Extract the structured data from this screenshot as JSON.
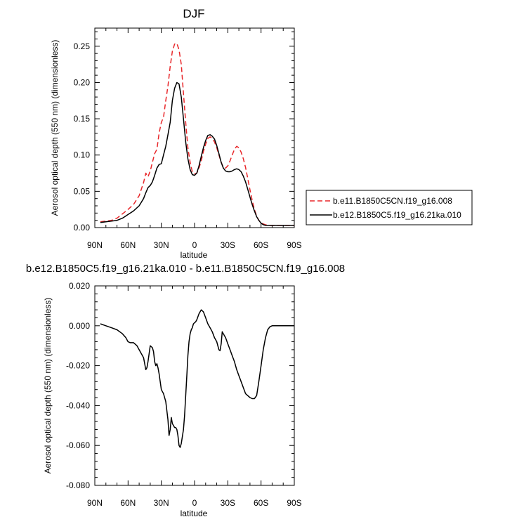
{
  "chart_data": [
    {
      "type": "line",
      "title": "DJF",
      "xlabel": "latitude",
      "ylabel": "Aerosol optical depth (550 nm) (dimensionless)",
      "xlim": [
        90,
        -90
      ],
      "ylim": [
        0.0,
        0.275
      ],
      "x_ticks": [
        90,
        60,
        30,
        0,
        -30,
        -60,
        -90
      ],
      "x_tick_labels": [
        "90N",
        "60N",
        "30N",
        "0",
        "30S",
        "60S",
        "90S"
      ],
      "y_ticks": [
        0.0,
        0.05,
        0.1,
        0.15,
        0.2,
        0.25
      ],
      "y_tick_labels": [
        "0.00",
        "0.05",
        "0.10",
        "0.15",
        "0.20",
        "0.25"
      ],
      "grid": false,
      "legend_position": "right",
      "series": [
        {
          "name": "b.e11.B1850C5CN.f19_g16.008",
          "color": "#e8272a",
          "dash": "dashed",
          "x": [
            85,
            80,
            75,
            70,
            65,
            60,
            55,
            50,
            46,
            44,
            42,
            40,
            38,
            36,
            34,
            32,
            30,
            28,
            26,
            24,
            22,
            20,
            18,
            16,
            14,
            12,
            10,
            8,
            6,
            4,
            2,
            0,
            -2,
            -4,
            -6,
            -8,
            -10,
            -12,
            -14,
            -16,
            -18,
            -20,
            -22,
            -24,
            -26,
            -28,
            -30,
            -32,
            -34,
            -36,
            -38,
            -40,
            -42,
            -44,
            -46,
            -48,
            -50,
            -52,
            -54,
            -56,
            -58,
            -60,
            -62,
            -64,
            -66,
            -70,
            -75,
            -80,
            -85,
            -90
          ],
          "y": [
            0.008,
            0.009,
            0.01,
            0.013,
            0.019,
            0.025,
            0.032,
            0.044,
            0.062,
            0.075,
            0.07,
            0.078,
            0.09,
            0.102,
            0.108,
            0.13,
            0.145,
            0.152,
            0.175,
            0.195,
            0.222,
            0.243,
            0.253,
            0.254,
            0.245,
            0.225,
            0.185,
            0.145,
            0.11,
            0.09,
            0.077,
            0.074,
            0.075,
            0.082,
            0.092,
            0.105,
            0.115,
            0.123,
            0.125,
            0.123,
            0.118,
            0.11,
            0.1,
            0.09,
            0.083,
            0.082,
            0.085,
            0.092,
            0.1,
            0.108,
            0.112,
            0.11,
            0.104,
            0.095,
            0.083,
            0.068,
            0.052,
            0.038,
            0.025,
            0.016,
            0.01,
            0.007,
            0.005,
            0.004,
            0.003,
            0.003,
            0.003,
            0.003,
            0.003,
            0.003
          ]
        },
        {
          "name": "b.e12.B1850C5.f19_g16.21ka.010",
          "color": "#000000",
          "dash": "solid",
          "x": [
            85,
            80,
            75,
            70,
            65,
            60,
            55,
            50,
            46,
            44,
            42,
            40,
            38,
            36,
            34,
            32,
            30,
            28,
            26,
            24,
            22,
            20,
            18,
            16,
            14,
            12,
            10,
            8,
            6,
            4,
            2,
            0,
            -2,
            -4,
            -6,
            -8,
            -10,
            -12,
            -14,
            -16,
            -18,
            -20,
            -22,
            -24,
            -26,
            -28,
            -30,
            -32,
            -34,
            -36,
            -38,
            -40,
            -42,
            -44,
            -46,
            -48,
            -50,
            -52,
            -54,
            -56,
            -58,
            -60,
            -62,
            -64,
            -66,
            -70,
            -75,
            -80,
            -85,
            -90
          ],
          "y": [
            0.007,
            0.008,
            0.009,
            0.01,
            0.013,
            0.018,
            0.023,
            0.03,
            0.04,
            0.048,
            0.055,
            0.058,
            0.063,
            0.072,
            0.082,
            0.087,
            0.088,
            0.1,
            0.112,
            0.128,
            0.145,
            0.175,
            0.192,
            0.2,
            0.198,
            0.18,
            0.15,
            0.118,
            0.095,
            0.08,
            0.073,
            0.072,
            0.075,
            0.085,
            0.098,
            0.11,
            0.12,
            0.127,
            0.128,
            0.126,
            0.122,
            0.113,
            0.102,
            0.09,
            0.082,
            0.078,
            0.077,
            0.077,
            0.078,
            0.08,
            0.081,
            0.08,
            0.077,
            0.071,
            0.063,
            0.053,
            0.042,
            0.032,
            0.023,
            0.015,
            0.01,
            0.006,
            0.004,
            0.003,
            0.003,
            0.003,
            0.003,
            0.003,
            0.003,
            0.003
          ]
        }
      ]
    },
    {
      "type": "line",
      "title": "b.e12.B1850C5.f19_g16.21ka.010 - b.e11.B1850C5CN.f19_g16.008",
      "xlabel": "latitude",
      "ylabel": "Aerosol optical depth (550 nm) (dimensionless)",
      "xlim": [
        90,
        -90
      ],
      "ylim": [
        -0.08,
        0.02
      ],
      "x_ticks": [
        90,
        60,
        30,
        0,
        -30,
        -60,
        -90
      ],
      "x_tick_labels": [
        "90N",
        "60N",
        "30N",
        "0",
        "30S",
        "60S",
        "90S"
      ],
      "y_ticks": [
        -0.08,
        -0.06,
        -0.04,
        -0.02,
        0.0,
        0.02
      ],
      "y_tick_labels": [
        "-0.080",
        "-0.060",
        "-0.040",
        "-0.020",
        "0.000",
        "0.020"
      ],
      "grid": false,
      "series": [
        {
          "color": "#000000",
          "x": [
            85,
            80,
            75,
            70,
            65,
            62,
            60,
            58,
            55,
            52,
            50,
            48,
            46,
            44,
            43,
            42,
            41,
            40,
            38,
            37,
            36,
            35,
            34,
            33,
            32,
            31,
            30,
            28,
            26,
            24,
            23,
            22,
            21,
            20,
            19,
            18,
            17,
            16,
            15,
            14,
            13,
            12,
            10,
            9,
            8,
            7,
            6,
            5,
            4,
            3,
            2,
            1,
            0,
            -1,
            -2,
            -4,
            -6,
            -8,
            -10,
            -12,
            -14,
            -16,
            -18,
            -20,
            -22,
            -23,
            -24,
            -25,
            -26,
            -28,
            -30,
            -32,
            -34,
            -36,
            -38,
            -40,
            -42,
            -44,
            -46,
            -48,
            -50,
            -52,
            -54,
            -56,
            -58,
            -60,
            -62,
            -64,
            -66,
            -68,
            -70,
            -75,
            -80,
            -85,
            -90
          ],
          "y": [
            0.001,
            0.0,
            -0.001,
            -0.002,
            -0.004,
            -0.006,
            -0.008,
            -0.0085,
            -0.0085,
            -0.01,
            -0.012,
            -0.014,
            -0.016,
            -0.022,
            -0.021,
            -0.018,
            -0.014,
            -0.01,
            -0.011,
            -0.013,
            -0.018,
            -0.02,
            -0.019,
            -0.021,
            -0.024,
            -0.028,
            -0.032,
            -0.034,
            -0.038,
            -0.047,
            -0.055,
            -0.052,
            -0.046,
            -0.049,
            -0.05,
            -0.051,
            -0.051,
            -0.052,
            -0.055,
            -0.06,
            -0.061,
            -0.059,
            -0.052,
            -0.045,
            -0.035,
            -0.025,
            -0.015,
            -0.008,
            -0.004,
            -0.002,
            -0.001,
            0.001,
            0.0015,
            0.002,
            0.003,
            0.006,
            0.008,
            0.007,
            0.004,
            0.001,
            -0.001,
            -0.003,
            -0.006,
            -0.008,
            -0.012,
            -0.0125,
            -0.009,
            -0.003,
            -0.004,
            -0.006,
            -0.009,
            -0.012,
            -0.015,
            -0.018,
            -0.022,
            -0.025,
            -0.028,
            -0.031,
            -0.034,
            -0.035,
            -0.036,
            -0.0365,
            -0.0365,
            -0.035,
            -0.028,
            -0.02,
            -0.012,
            -0.006,
            -0.002,
            -0.0005,
            0.0,
            0.0,
            0.0,
            0.0,
            0.0
          ]
        }
      ]
    }
  ]
}
